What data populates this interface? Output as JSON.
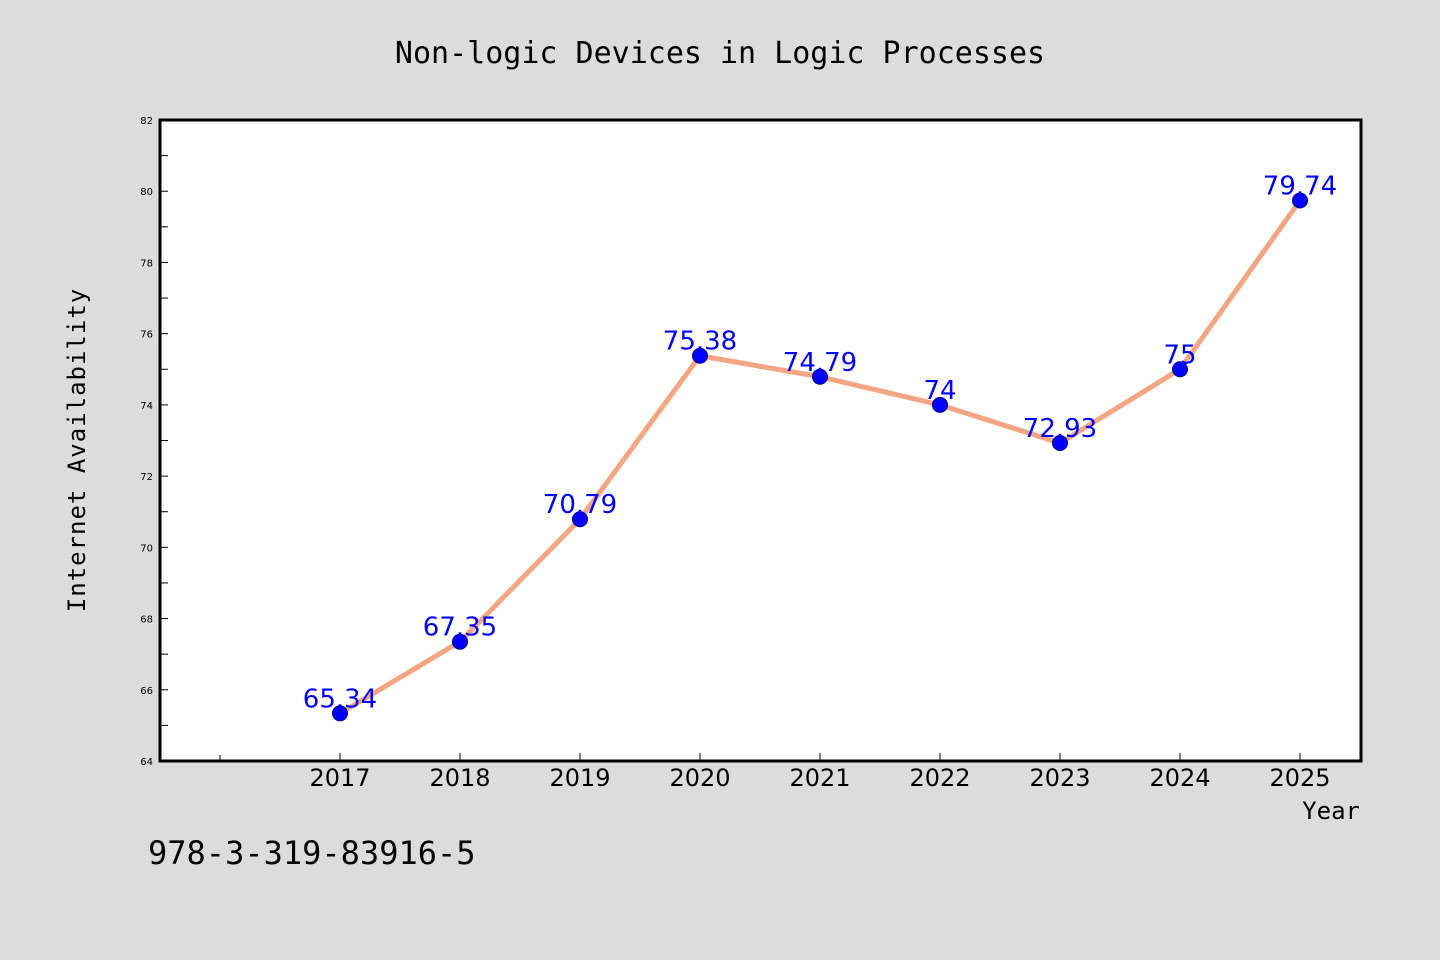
{
  "chart_data": {
    "type": "line",
    "title": "Non-logic Devices in Logic Processes",
    "xlabel": "Year",
    "ylabel": "Internet Availability",
    "x": [
      "2017",
      "2018",
      "2019",
      "2020",
      "2021",
      "2022",
      "2023",
      "2024",
      "2025"
    ],
    "series": [
      {
        "values": [
          65.34,
          67.35,
          70.79,
          75.38,
          74.79,
          74,
          72.93,
          75,
          79.74
        ],
        "data_labels": [
          "65.34",
          "67.35",
          "70.79",
          "75.38",
          "74.79",
          "74",
          "72.93",
          "75",
          "79.74"
        ]
      }
    ],
    "ylim": [
      64,
      82
    ],
    "yticks": [
      64,
      66,
      68,
      70,
      72,
      74,
      76,
      78,
      80,
      82
    ],
    "ytick_labels": [
      "64",
      "66",
      "68",
      "70",
      "72",
      "74",
      "76",
      "78",
      "80",
      "82"
    ],
    "grid": false,
    "line_color": "#f4a582",
    "marker_color": "#0000ff",
    "label_color": "#0000ff",
    "background_color": "#dcdcdc",
    "plot_background_color": "#ffffff"
  },
  "footer": {
    "isbn": "978-3-319-83916-5"
  }
}
